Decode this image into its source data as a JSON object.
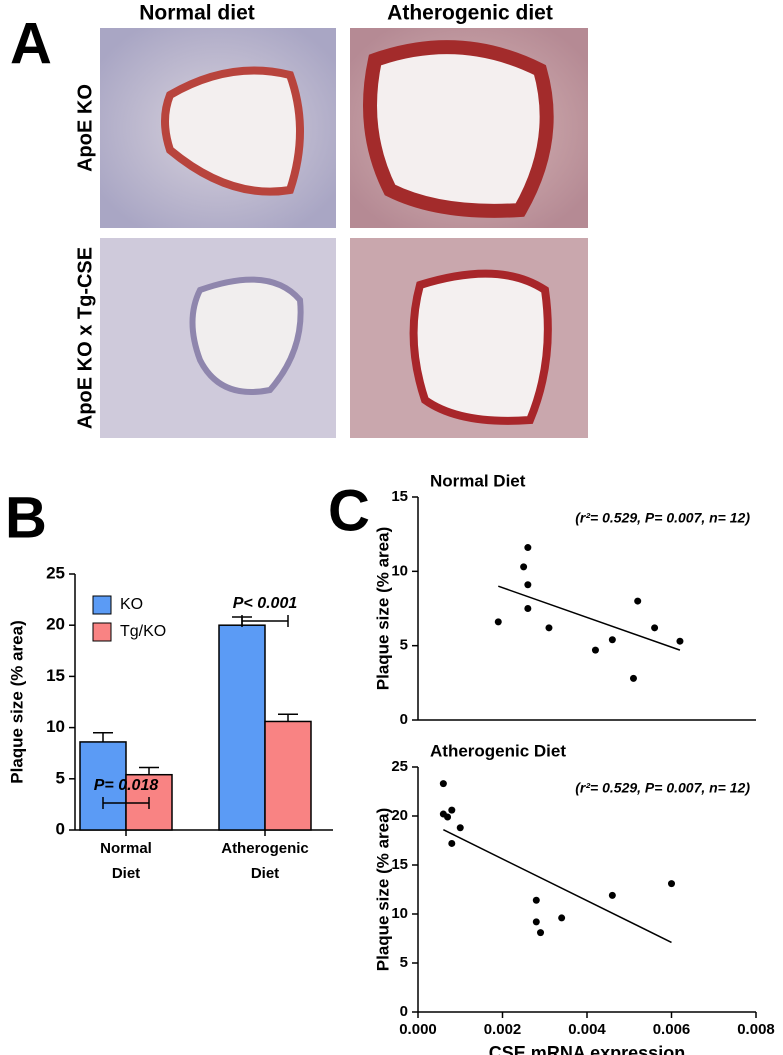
{
  "panel_a": {
    "label": "A",
    "columns": [
      "Normal diet",
      "Atherogenic diet"
    ],
    "rows": [
      "ApoE KO",
      "ApoE KO x Tg-CSE"
    ]
  },
  "chart_data": [
    {
      "type": "bar",
      "panel_label": "B",
      "ylabel": "Plaque size (% area)",
      "categories": [
        "Normal Diet",
        "Atherogenic Diet"
      ],
      "series": [
        {
          "name": "KO",
          "color": "#5b9bf5",
          "values": [
            8.6,
            20.0
          ],
          "errors": [
            0.9,
            0.8
          ]
        },
        {
          "name": "Tg/KO",
          "color": "#f98383",
          "values": [
            5.4,
            10.6
          ],
          "errors": [
            0.7,
            0.7
          ]
        }
      ],
      "ylim": [
        0,
        25
      ],
      "yticks": [
        0,
        5,
        10,
        15,
        20,
        25
      ],
      "annotations": [
        "P= 0.018",
        "P< 0.001"
      ],
      "legend": "upper left"
    },
    {
      "type": "scatter",
      "panel_label": "C",
      "title": "Normal Diet",
      "annotation": "(r²= 0.529, P= 0.007, n= 12)",
      "ylabel": "Plaque size (% area)",
      "x": [
        0.0019,
        0.0025,
        0.0026,
        0.0026,
        0.0026,
        0.0031,
        0.0042,
        0.0046,
        0.0052,
        0.0056,
        0.0051,
        0.0062
      ],
      "values": [
        6.6,
        10.3,
        11.6,
        9.1,
        7.5,
        6.2,
        4.7,
        5.4,
        8.0,
        6.2,
        2.8,
        5.3
      ],
      "fit": {
        "x": [
          0.0019,
          0.0062
        ],
        "values": [
          9.0,
          4.7
        ]
      },
      "xlim": [
        0,
        0.008
      ],
      "ylim": [
        0,
        15
      ],
      "yticks": [
        0,
        5,
        10,
        15
      ]
    },
    {
      "type": "scatter",
      "title": "Atherogenic Diet",
      "annotation": "(r²= 0.529, P= 0.007, n= 12)",
      "ylabel": "Plaque size (% area)",
      "xlabel": "CSE mRNA expression",
      "x": [
        0.0006,
        0.0006,
        0.0008,
        0.0007,
        0.0008,
        0.001,
        0.0028,
        0.0028,
        0.0029,
        0.0034,
        0.0046,
        0.006
      ],
      "values": [
        23.3,
        20.2,
        20.6,
        19.9,
        17.2,
        18.8,
        11.4,
        9.2,
        8.1,
        9.6,
        11.9,
        13.1
      ],
      "fit": {
        "x": [
          0.0006,
          0.006
        ],
        "values": [
          18.6,
          7.1
        ]
      },
      "xlim": [
        0,
        0.008
      ],
      "xticks": [
        {
          "value": 0,
          "label": "0.000"
        },
        {
          "value": 0.002,
          "label": "0.002"
        },
        {
          "value": 0.004,
          "label": "0.004"
        },
        {
          "value": 0.006,
          "label": "0.006"
        },
        {
          "value": 0.008,
          "label": "0.008"
        }
      ],
      "ylim": [
        0,
        25
      ],
      "yticks": [
        0,
        5,
        10,
        15,
        20,
        25
      ]
    }
  ]
}
